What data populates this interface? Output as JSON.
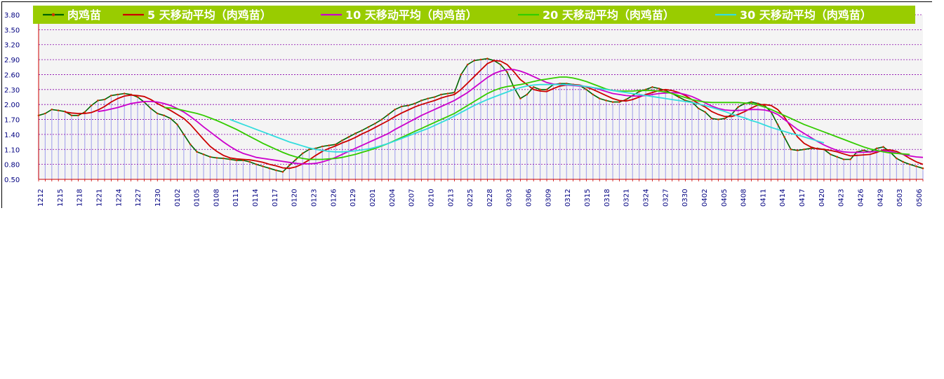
{
  "chart_data": {
    "type": "line",
    "title": "",
    "xlabel": "",
    "ylabel": "",
    "ylim": [
      0.5,
      3.8
    ],
    "yticks": [
      "0.50",
      "0.80",
      "1.10",
      "1.40",
      "1.70",
      "2.00",
      "2.30",
      "2.60",
      "2.90",
      "3.20",
      "3.50",
      "3.80"
    ],
    "grid": true,
    "legend_position": "top",
    "x_tick_labels": [
      "1212",
      "1215",
      "1218",
      "1221",
      "1224",
      "1227",
      "1230",
      "0102",
      "0105",
      "0108",
      "0111",
      "0114",
      "0117",
      "0120",
      "0123",
      "0126",
      "0129",
      "0201",
      "0204",
      "0207",
      "0210",
      "0213",
      "0225",
      "0228",
      "0303",
      "0306",
      "0309",
      "0312",
      "0315",
      "0318",
      "0321",
      "0324",
      "0327",
      "0330",
      "0402",
      "0405",
      "0408",
      "0411",
      "0414",
      "0417",
      "0420",
      "0423",
      "0426",
      "0429",
      "0503",
      "0506"
    ],
    "series": [
      {
        "name": "肉鸡苗",
        "color": "#006400",
        "values": [
          1.78,
          1.82,
          1.9,
          1.88,
          1.86,
          1.78,
          1.78,
          1.85,
          1.98,
          2.08,
          2.1,
          2.18,
          2.2,
          2.22,
          2.2,
          2.15,
          2.05,
          1.92,
          1.82,
          1.78,
          1.72,
          1.6,
          1.4,
          1.2,
          1.05,
          1,
          0.95,
          0.93,
          0.92,
          0.9,
          0.88,
          0.88,
          0.85,
          0.8,
          0.76,
          0.72,
          0.68,
          0.65,
          0.78,
          0.9,
          1.02,
          1.1,
          1.12,
          1.16,
          1.18,
          1.2,
          1.28,
          1.35,
          1.42,
          1.48,
          1.55,
          1.62,
          1.7,
          1.8,
          1.9,
          1.96,
          1.98,
          2.02,
          2.08,
          2.12,
          2.15,
          2.2,
          2.22,
          2.24,
          2.6,
          2.8,
          2.88,
          2.9,
          2.92,
          2.88,
          2.8,
          2.65,
          2.35,
          2.12,
          2.2,
          2.35,
          2.3,
          2.3,
          2.4,
          2.42,
          2.42,
          2.4,
          2.38,
          2.3,
          2.2,
          2.12,
          2.08,
          2.05,
          2.05,
          2.1,
          2.18,
          2.26,
          2.3,
          2.35,
          2.32,
          2.28,
          2.22,
          2.15,
          2.08,
          2.05,
          1.92,
          1.85,
          1.72,
          1.7,
          1.72,
          1.8,
          1.95,
          2.02,
          2.05,
          2.02,
          1.98,
          1.85,
          1.6,
          1.35,
          1.1,
          1.08,
          1.1,
          1.12,
          1.12,
          1.1,
          1.0,
          0.95,
          0.9,
          0.9,
          1.05,
          1.08,
          1.05,
          1.12,
          1.15,
          1.05,
          0.92,
          0.85,
          0.8,
          0.76,
          0.72
        ]
      },
      {
        "name": "5 天移动平均（肉鸡苗）",
        "color": "#cc0000",
        "values": [
          null,
          null,
          null,
          null,
          1.85,
          1.83,
          1.82,
          1.82,
          1.84,
          1.89,
          1.96,
          2.05,
          2.12,
          2.17,
          2.19,
          2.18,
          2.16,
          2.1,
          2.02,
          1.95,
          1.88,
          1.8,
          1.72,
          1.6,
          1.45,
          1.3,
          1.16,
          1.06,
          0.98,
          0.93,
          0.91,
          0.9,
          0.89,
          0.87,
          0.84,
          0.8,
          0.77,
          0.73,
          0.72,
          0.75,
          0.81,
          0.89,
          0.98,
          1.06,
          1.12,
          1.17,
          1.23,
          1.28,
          1.34,
          1.41,
          1.47,
          1.54,
          1.61,
          1.68,
          1.76,
          1.83,
          1.89,
          1.95,
          2.0,
          2.04,
          2.08,
          2.13,
          2.17,
          2.2,
          2.3,
          2.43,
          2.56,
          2.69,
          2.82,
          2.88,
          2.87,
          2.8,
          2.66,
          2.5,
          2.4,
          2.3,
          2.27,
          2.26,
          2.32,
          2.37,
          2.39,
          2.4,
          2.39,
          2.35,
          2.3,
          2.24,
          2.18,
          2.12,
          2.08,
          2.07,
          2.1,
          2.15,
          2.2,
          2.24,
          2.28,
          2.3,
          2.28,
          2.24,
          2.18,
          2.1,
          2.02,
          1.95,
          1.86,
          1.8,
          1.76,
          1.76,
          1.8,
          1.86,
          1.93,
          1.99,
          2.0,
          1.98,
          1.9,
          1.75,
          1.55,
          1.35,
          1.22,
          1.15,
          1.11,
          1.1,
          1.08,
          1.05,
          1.01,
          0.97,
          0.98,
          0.99,
          1.0,
          1.04,
          1.09,
          1.09,
          1.06,
          1.0,
          0.92,
          0.85,
          0.8
        ]
      },
      {
        "name": "10 天移动平均（肉鸡苗）",
        "color": "#cc00cc",
        "values": [
          null,
          null,
          null,
          null,
          null,
          null,
          null,
          null,
          null,
          1.86,
          1.88,
          1.91,
          1.94,
          1.98,
          2.02,
          2.04,
          2.06,
          2.06,
          2.05,
          2.02,
          1.98,
          1.92,
          1.85,
          1.76,
          1.66,
          1.55,
          1.45,
          1.35,
          1.25,
          1.16,
          1.08,
          1.02,
          0.98,
          0.94,
          0.92,
          0.9,
          0.88,
          0.86,
          0.84,
          0.82,
          0.81,
          0.81,
          0.82,
          0.85,
          0.89,
          0.94,
          1.0,
          1.06,
          1.12,
          1.18,
          1.24,
          1.3,
          1.36,
          1.42,
          1.5,
          1.57,
          1.64,
          1.71,
          1.78,
          1.84,
          1.9,
          1.96,
          2.02,
          2.08,
          2.16,
          2.24,
          2.34,
          2.44,
          2.54,
          2.62,
          2.67,
          2.7,
          2.7,
          2.67,
          2.62,
          2.56,
          2.5,
          2.44,
          2.41,
          2.4,
          2.39,
          2.38,
          2.37,
          2.36,
          2.34,
          2.3,
          2.26,
          2.22,
          2.2,
          2.18,
          2.17,
          2.17,
          2.18,
          2.2,
          2.22,
          2.23,
          2.24,
          2.23,
          2.2,
          2.16,
          2.1,
          2.03,
          1.97,
          1.92,
          1.89,
          1.88,
          1.88,
          1.89,
          1.9,
          1.9,
          1.89,
          1.86,
          1.8,
          1.7,
          1.6,
          1.5,
          1.42,
          1.34,
          1.26,
          1.19,
          1.13,
          1.08,
          1.05,
          1.04,
          1.04,
          1.04,
          1.05,
          1.06,
          1.07,
          1.06,
          1.03,
          1.0,
          0.97,
          0.95,
          0.94
        ]
      },
      {
        "name": "20 天移动平均（肉鸡苗）",
        "color": "#33cc00",
        "values": [
          null,
          null,
          null,
          null,
          null,
          null,
          null,
          null,
          null,
          null,
          null,
          null,
          null,
          null,
          null,
          null,
          null,
          null,
          null,
          1.94,
          1.93,
          1.91,
          1.88,
          1.85,
          1.82,
          1.78,
          1.73,
          1.68,
          1.62,
          1.56,
          1.5,
          1.43,
          1.36,
          1.29,
          1.22,
          1.16,
          1.1,
          1.04,
          0.99,
          0.95,
          0.92,
          0.9,
          0.9,
          0.9,
          0.91,
          0.92,
          0.94,
          0.97,
          1.0,
          1.04,
          1.08,
          1.12,
          1.17,
          1.22,
          1.28,
          1.34,
          1.4,
          1.46,
          1.52,
          1.58,
          1.64,
          1.7,
          1.76,
          1.82,
          1.9,
          1.98,
          2.06,
          2.14,
          2.22,
          2.28,
          2.33,
          2.36,
          2.38,
          2.4,
          2.43,
          2.46,
          2.49,
          2.51,
          2.53,
          2.55,
          2.55,
          2.53,
          2.5,
          2.46,
          2.41,
          2.36,
          2.31,
          2.28,
          2.27,
          2.27,
          2.27,
          2.28,
          2.28,
          2.28,
          2.27,
          2.25,
          2.22,
          2.18,
          2.14,
          2.1,
          2.07,
          2.05,
          2.04,
          2.04,
          2.04,
          2.04,
          2.04,
          2.03,
          2.02,
          1.99,
          1.95,
          1.9,
          1.84,
          1.78,
          1.72,
          1.66,
          1.6,
          1.55,
          1.5,
          1.45,
          1.4,
          1.35,
          1.3,
          1.25,
          1.2,
          1.15,
          1.11,
          1.08,
          1.05,
          1.03,
          1.02,
          1.01,
          1.0
        ]
      },
      {
        "name": "30 天移动平均（肉鸡苗）",
        "color": "#33dddd",
        "values": [
          null,
          null,
          null,
          null,
          null,
          null,
          null,
          null,
          null,
          null,
          null,
          null,
          null,
          null,
          null,
          null,
          null,
          null,
          null,
          null,
          null,
          null,
          null,
          null,
          null,
          null,
          null,
          null,
          null,
          1.7,
          1.65,
          1.6,
          1.55,
          1.5,
          1.45,
          1.4,
          1.35,
          1.3,
          1.25,
          1.21,
          1.17,
          1.13,
          1.1,
          1.08,
          1.06,
          1.05,
          1.05,
          1.06,
          1.07,
          1.09,
          1.11,
          1.14,
          1.18,
          1.22,
          1.27,
          1.32,
          1.37,
          1.42,
          1.47,
          1.52,
          1.58,
          1.64,
          1.7,
          1.77,
          1.84,
          1.91,
          1.98,
          2.04,
          2.1,
          2.15,
          2.2,
          2.25,
          2.3,
          2.34,
          2.37,
          2.39,
          2.4,
          2.4,
          2.4,
          2.4,
          2.4,
          2.39,
          2.38,
          2.36,
          2.34,
          2.32,
          2.3,
          2.28,
          2.26,
          2.24,
          2.22,
          2.2,
          2.18,
          2.16,
          2.14,
          2.12,
          2.1,
          2.08,
          2.06,
          2.04,
          2.01,
          1.98,
          1.94,
          1.9,
          1.86,
          1.81,
          1.77,
          1.73,
          1.68,
          1.64,
          1.59,
          1.54,
          1.5,
          1.46,
          1.42,
          1.39,
          1.35,
          1.31,
          1.27,
          1.23
        ]
      }
    ]
  }
}
